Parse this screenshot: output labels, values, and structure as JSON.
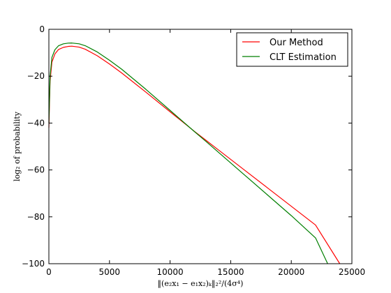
{
  "chart_data": {
    "type": "line",
    "xlabel": "‖(e₂x₁ − e₁x₂)ₖ‖₂²/(4σ⁴)",
    "ylabel": "log₂ of probability",
    "xlim": [
      0,
      25000
    ],
    "ylim": [
      -100,
      0
    ],
    "x_ticks": [
      "0",
      "5000",
      "10000",
      "15000",
      "20000",
      "25000"
    ],
    "y_ticks": [
      "0",
      "−20",
      "−40",
      "−60",
      "−80",
      "−100"
    ],
    "grid": false,
    "legend_position": "top-right",
    "colors": {
      "our_method": "#ff0000",
      "clt": "#007f00"
    },
    "series": [
      {
        "name": "Our Method",
        "color": "#ff0000",
        "x": [
          0,
          100,
          250,
          500,
          800,
          1200,
          1600,
          1900,
          2500,
          3000,
          4000,
          5000,
          6000,
          8000,
          10000,
          12000,
          13000,
          14000,
          16000,
          18000,
          20000,
          22000,
          24000
        ],
        "y": [
          -42,
          -22,
          -14,
          -10.5,
          -8.6,
          -7.7,
          -7.3,
          -7.2,
          -7.6,
          -8.5,
          -11.3,
          -14.8,
          -18.6,
          -26.8,
          -35.2,
          -43.5,
          -47.5,
          -51.5,
          -59.5,
          -67.5,
          -75.5,
          -83.5,
          -100
        ]
      },
      {
        "name": "CLT Estimation",
        "color": "#007f00",
        "x": [
          0,
          100,
          250,
          500,
          800,
          1200,
          1600,
          1900,
          2500,
          3000,
          4000,
          5000,
          6000,
          8000,
          10000,
          12000,
          13000,
          14000,
          16000,
          18000,
          20000,
          22000,
          23000
        ],
        "y": [
          -40,
          -20,
          -12,
          -8.7,
          -7.0,
          -6.2,
          -5.9,
          -5.85,
          -6.2,
          -7.0,
          -9.7,
          -13.2,
          -17.0,
          -25.6,
          -34.6,
          -43.6,
          -48.0,
          -52.5,
          -61.5,
          -70.5,
          -79.5,
          -89.0,
          -100
        ]
      }
    ]
  }
}
